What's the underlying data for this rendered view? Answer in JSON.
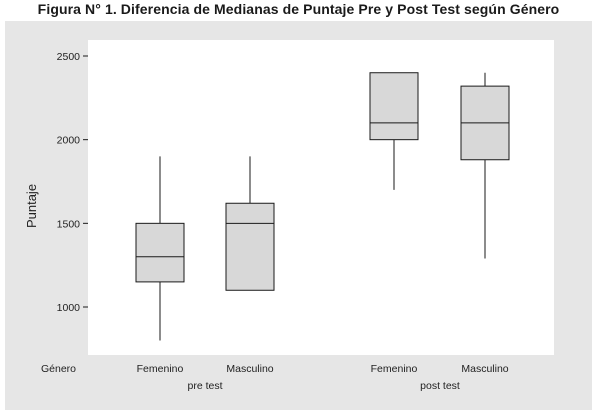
{
  "figure": {
    "title": "Figura N° 1. Diferencia de Medianas de Puntaje Pre y Post Test según Género"
  },
  "chart_data": {
    "type": "boxplot",
    "title": "Figura N° 1. Diferencia de Medianas de Puntaje Pre y Post Test según Género",
    "ylabel": "Puntaje",
    "xlabel": "Género",
    "ylim": [
      700,
      2520
    ],
    "yticks": [
      1000,
      1500,
      2000,
      2500
    ],
    "grid": false,
    "groups": [
      {
        "name": "pre test",
        "categories": [
          "Femenino",
          "Masculino"
        ]
      },
      {
        "name": "post test",
        "categories": [
          "Femenino",
          "Masculino"
        ]
      }
    ],
    "boxes": [
      {
        "group": "pre test",
        "category": "Femenino",
        "min": 800,
        "q1": 1150,
        "median": 1300,
        "q3": 1500,
        "max": 1900
      },
      {
        "group": "pre test",
        "category": "Masculino",
        "min": 1100,
        "q1": 1100,
        "median": 1500,
        "q3": 1620,
        "max": 1900
      },
      {
        "group": "post test",
        "category": "Femenino",
        "min": 1700,
        "q1": 2000,
        "median": 2100,
        "q3": 2400,
        "max": 2400
      },
      {
        "group": "post test",
        "category": "Masculino",
        "min": 1290,
        "q1": 1880,
        "median": 2100,
        "q3": 2320,
        "max": 2400
      }
    ],
    "colors": {
      "box_fill": "#d8d8d8",
      "plot_bg": "#ffffff",
      "outer_bg": "#e6e6e6",
      "line": "#1a1a1a"
    }
  }
}
